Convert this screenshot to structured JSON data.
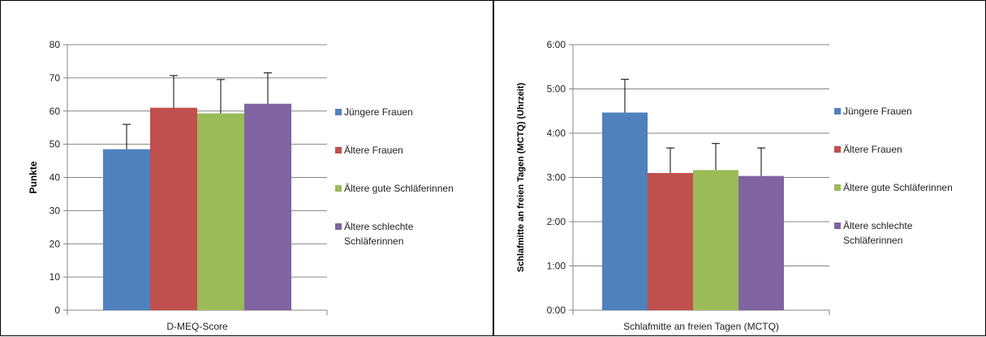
{
  "chart_data": [
    {
      "type": "bar",
      "categories": [
        "D-MEQ-Score"
      ],
      "series": [
        {
          "name": "Jüngere Frauen",
          "values": [
            48.5
          ],
          "error": [
            7.5
          ],
          "color": "#4F81BD"
        },
        {
          "name": "Ältere Frauen",
          "values": [
            61.0
          ],
          "error": [
            9.7
          ],
          "color": "#C0504D"
        },
        {
          "name": "Ältere gute Schläferinnen",
          "values": [
            59.3
          ],
          "error": [
            10.2
          ],
          "color": "#9BBB59"
        },
        {
          "name": "Ältere schlechte Schläferinnen",
          "values": [
            62.2
          ],
          "error": [
            9.3
          ],
          "color": "#8064A2"
        }
      ],
      "ylabel": "Punkte",
      "xlabel": "",
      "ylim": [
        0,
        80
      ],
      "yticks": [
        0,
        10,
        20,
        30,
        40,
        50,
        60,
        70,
        80
      ],
      "ytick_labels": [
        "0",
        "10",
        "20",
        "30",
        "40",
        "50",
        "60",
        "70",
        "80"
      ],
      "grid": true,
      "legend_position": "right"
    },
    {
      "type": "bar",
      "categories": [
        "Schlafmitte an freien Tagen (MCTQ)"
      ],
      "series": [
        {
          "name": "Jüngere Frauen",
          "values": [
            "4:28"
          ],
          "error": [
            "0:45"
          ],
          "color": "#4F81BD"
        },
        {
          "name": "Ältere Frauen",
          "values": [
            "3:06"
          ],
          "error": [
            "0:34"
          ],
          "color": "#C0504D"
        },
        {
          "name": "Ältere gute Schläferinnen",
          "values": [
            "3:10"
          ],
          "error": [
            "0:36"
          ],
          "color": "#9BBB59"
        },
        {
          "name": "Ältere schlechte Schläferinnen",
          "values": [
            "3:02"
          ],
          "error": [
            "0:38"
          ],
          "color": "#8064A2"
        }
      ],
      "ylabel": "Schlafmitte an freien Tagen (MCTQ) (Uhrzeit)",
      "xlabel": "",
      "ylim": [
        "0:00",
        "6:00"
      ],
      "yticks": [
        "0:00",
        "1:00",
        "2:00",
        "3:00",
        "4:00",
        "5:00",
        "6:00"
      ],
      "ytick_labels": [
        "0:00",
        "1:00",
        "2:00",
        "3:00",
        "4:00",
        "5:00",
        "6:00"
      ],
      "grid": true,
      "legend_position": "right"
    }
  ]
}
